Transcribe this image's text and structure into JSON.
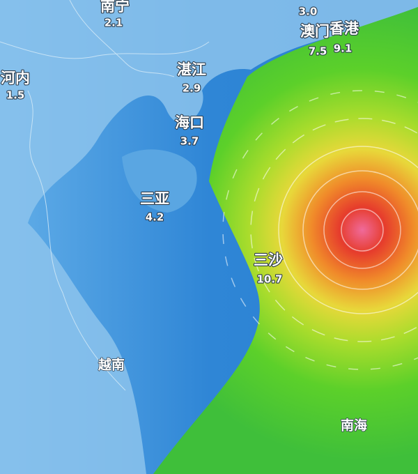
{
  "cities": [
    {
      "name": "南宁",
      "value": "2.1"
    },
    {
      "name": "河内",
      "value": "1.5"
    },
    {
      "name": "湛江",
      "value": "2.9"
    },
    {
      "name": "海口",
      "value": "3.7"
    },
    {
      "name": "三亚",
      "value": "4.2"
    },
    {
      "name": "澳门",
      "value": "7.5"
    },
    {
      "name": "香港",
      "value": "9.1"
    },
    {
      "name": "三沙",
      "value": "10.7"
    }
  ],
  "partial_labels": [
    {
      "value": "3.0"
    }
  ],
  "regions": [
    "越南",
    "南海"
  ]
}
